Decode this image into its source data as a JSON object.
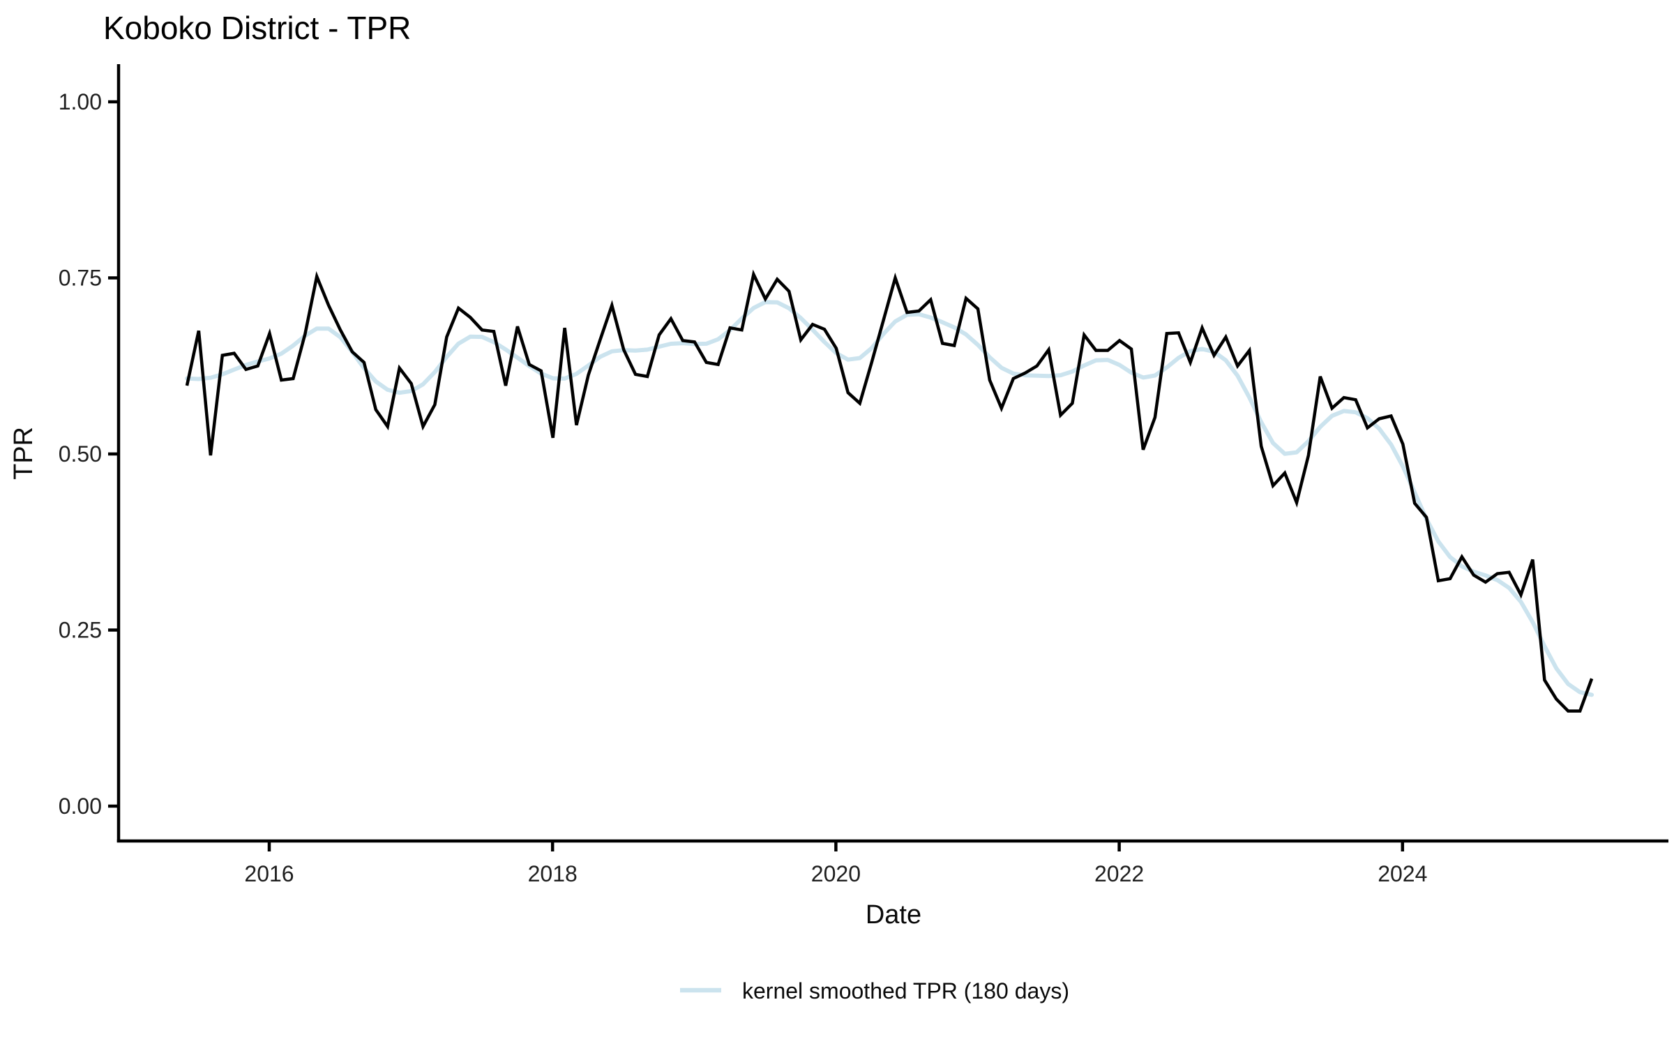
{
  "chart": {
    "title": "Koboko District - TPR",
    "x_axis": {
      "label": "Date",
      "ticks": [
        {
          "label": "2016",
          "year": 2016
        },
        {
          "label": "2018",
          "year": 2018
        },
        {
          "label": "2020",
          "year": 2020
        },
        {
          "label": "2022",
          "year": 2022
        },
        {
          "label": "2024",
          "year": 2024
        }
      ]
    },
    "y_axis": {
      "label": "TPR",
      "ticks": [
        {
          "label": "1.00",
          "value": 1.0
        },
        {
          "label": "0.75",
          "value": 0.75
        },
        {
          "label": "0.50",
          "value": 0.5
        },
        {
          "label": "0.25",
          "value": 0.25
        },
        {
          "label": "0.00",
          "value": 0.0
        }
      ]
    },
    "legend": {
      "label": "kernel smoothed TPR (180 days)",
      "swatch_color": "#cbe3ee"
    }
  },
  "chart_data": {
    "type": "line",
    "title": "Koboko District - TPR",
    "xlabel": "Date",
    "ylabel": "TPR",
    "ylim": [
      0,
      1
    ],
    "grid": false,
    "legend_position": "bottom",
    "x_start": "2015-06",
    "x_end": "2025-05",
    "frequency": "monthly",
    "smoother": {
      "type": "kernel",
      "window_days": 180
    },
    "series": [
      {
        "name": "TPR",
        "color": "#000000",
        "values": [
          0.597,
          0.675,
          0.498,
          0.64,
          0.643,
          0.62,
          0.625,
          0.671,
          0.605,
          0.607,
          0.67,
          0.752,
          0.711,
          0.676,
          0.645,
          0.63,
          0.563,
          0.539,
          0.622,
          0.6,
          0.539,
          0.57,
          0.666,
          0.707,
          0.694,
          0.676,
          0.674,
          0.597,
          0.681,
          0.627,
          0.618,
          0.523,
          0.679,
          0.541,
          0.612,
          0.662,
          0.711,
          0.648,
          0.613,
          0.61,
          0.669,
          0.692,
          0.661,
          0.659,
          0.63,
          0.627,
          0.679,
          0.676,
          0.755,
          0.72,
          0.748,
          0.731,
          0.662,
          0.684,
          0.677,
          0.65,
          0.587,
          0.572,
          0.63,
          0.69,
          0.75,
          0.701,
          0.703,
          0.719,
          0.657,
          0.654,
          0.721,
          0.706,
          0.605,
          0.565,
          0.607,
          0.615,
          0.625,
          0.648,
          0.555,
          0.572,
          0.669,
          0.647,
          0.647,
          0.661,
          0.649,
          0.506,
          0.552,
          0.671,
          0.672,
          0.63,
          0.679,
          0.64,
          0.666,
          0.625,
          0.647,
          0.511,
          0.455,
          0.473,
          0.431,
          0.498,
          0.61,
          0.565,
          0.58,
          0.577,
          0.537,
          0.55,
          0.554,
          0.514,
          0.43,
          0.41,
          0.32,
          0.323,
          0.354,
          0.328,
          0.318,
          0.33,
          0.332,
          0.3,
          0.35,
          0.179,
          0.152,
          0.135,
          0.135,
          0.181
        ]
      },
      {
        "name": "kernel smoothed TPR (180 days)",
        "color": "#cbe3ee",
        "derived_from": "TPR",
        "derivation": "gaussian kernel smooth, 180 day window"
      }
    ]
  }
}
